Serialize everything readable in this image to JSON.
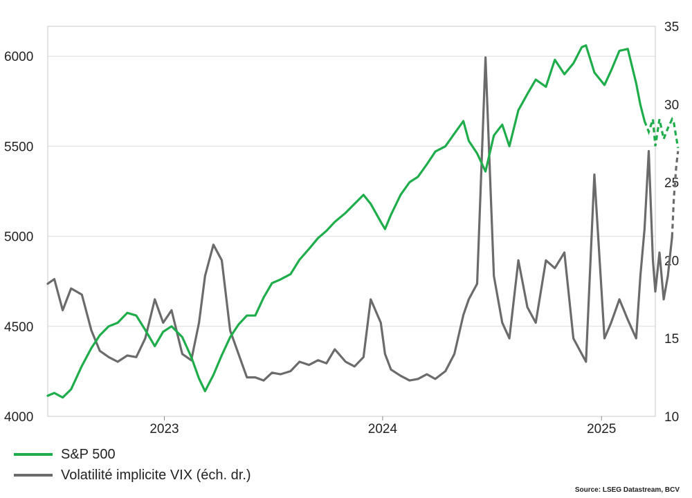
{
  "chart_data": {
    "type": "line",
    "title": "",
    "source": "Source: LSEG Datastream, BCV",
    "x_ticks": [
      "2023",
      "2024",
      "2025"
    ],
    "y_left": {
      "min": 4000,
      "max": 6166,
      "ticks": [
        4000,
        4500,
        5000,
        5500,
        6000
      ]
    },
    "y_right": {
      "min": 10,
      "max": 35,
      "ticks": [
        10,
        15,
        20,
        25,
        30,
        35
      ]
    },
    "grid": true,
    "legend_position": "bottom-left",
    "x_domain": [
      "2022-06-20",
      "2025-04-01"
    ],
    "series": [
      {
        "name": "S&P 500",
        "axis": "left",
        "color": "#1fad4b",
        "projection_from": "2025-03-14",
        "points": [
          [
            "2022-06-20",
            4115
          ],
          [
            "2022-07-01",
            4130
          ],
          [
            "2022-07-15",
            4105
          ],
          [
            "2022-07-29",
            4150
          ],
          [
            "2022-08-16",
            4280
          ],
          [
            "2022-09-01",
            4380
          ],
          [
            "2022-09-15",
            4450
          ],
          [
            "2022-09-30",
            4500
          ],
          [
            "2022-10-15",
            4520
          ],
          [
            "2022-10-31",
            4575
          ],
          [
            "2022-11-15",
            4560
          ],
          [
            "2022-11-30",
            4480
          ],
          [
            "2022-12-16",
            4390
          ],
          [
            "2022-12-30",
            4470
          ],
          [
            "2023-01-13",
            4500
          ],
          [
            "2023-01-31",
            4440
          ],
          [
            "2023-02-15",
            4330
          ],
          [
            "2023-02-28",
            4210
          ],
          [
            "2023-03-10",
            4140
          ],
          [
            "2023-03-24",
            4230
          ],
          [
            "2023-04-07",
            4340
          ],
          [
            "2023-04-21",
            4440
          ],
          [
            "2023-05-05",
            4510
          ],
          [
            "2023-05-19",
            4560
          ],
          [
            "2023-06-02",
            4560
          ],
          [
            "2023-06-16",
            4660
          ],
          [
            "2023-06-30",
            4740
          ],
          [
            "2023-07-14",
            4760
          ],
          [
            "2023-07-31",
            4790
          ],
          [
            "2023-08-15",
            4870
          ],
          [
            "2023-08-31",
            4930
          ],
          [
            "2023-09-15",
            4990
          ],
          [
            "2023-09-29",
            5030
          ],
          [
            "2023-10-13",
            5080
          ],
          [
            "2023-10-31",
            5130
          ],
          [
            "2023-11-15",
            5180
          ],
          [
            "2023-11-30",
            5230
          ],
          [
            "2023-12-12",
            5180
          ],
          [
            "2023-12-29",
            5080
          ],
          [
            "2024-01-05",
            5040
          ],
          [
            "2024-01-15",
            5120
          ],
          [
            "2024-01-31",
            5230
          ],
          [
            "2024-02-15",
            5300
          ],
          [
            "2024-02-29",
            5330
          ],
          [
            "2024-03-15",
            5400
          ],
          [
            "2024-03-29",
            5470
          ],
          [
            "2024-04-15",
            5500
          ],
          [
            "2024-04-30",
            5570
          ],
          [
            "2024-05-15",
            5640
          ],
          [
            "2024-05-24",
            5530
          ],
          [
            "2024-06-07",
            5460
          ],
          [
            "2024-06-21",
            5360
          ],
          [
            "2024-07-05",
            5560
          ],
          [
            "2024-07-19",
            5620
          ],
          [
            "2024-07-31",
            5500
          ],
          [
            "2024-08-15",
            5700
          ],
          [
            "2024-08-30",
            5790
          ],
          [
            "2024-09-13",
            5870
          ],
          [
            "2024-09-30",
            5830
          ],
          [
            "2024-10-15",
            5980
          ],
          [
            "2024-10-31",
            5900
          ],
          [
            "2024-11-15",
            5960
          ],
          [
            "2024-11-29",
            6050
          ],
          [
            "2024-12-06",
            6060
          ],
          [
            "2024-12-20",
            5910
          ],
          [
            "2025-01-06",
            5840
          ],
          [
            "2025-01-17",
            5920
          ],
          [
            "2025-01-31",
            6030
          ],
          [
            "2025-02-14",
            6040
          ],
          [
            "2025-02-28",
            5850
          ],
          [
            "2025-03-07",
            5730
          ],
          [
            "2025-03-14",
            5640
          ],
          [
            "2025-03-21",
            5580
          ],
          [
            "2025-03-28",
            5650
          ],
          [
            "2025-04-01",
            5500
          ],
          [
            "2025-04-08",
            5650
          ],
          [
            "2025-04-15",
            5540
          ],
          [
            "2025-04-22",
            5600
          ],
          [
            "2025-04-29",
            5650
          ],
          [
            "2025-05-02",
            5630
          ],
          [
            "2025-05-06",
            5550
          ],
          [
            "2025-05-09",
            5490
          ]
        ]
      },
      {
        "name": "Volatilité implicite VIX (éch. dr.)",
        "axis": "right",
        "color": "#6b6b6b",
        "projection_from": "2025-04-29",
        "points": [
          [
            "2022-06-20",
            18.5
          ],
          [
            "2022-07-01",
            18.8
          ],
          [
            "2022-07-15",
            16.8
          ],
          [
            "2022-07-29",
            18.2
          ],
          [
            "2022-08-16",
            17.8
          ],
          [
            "2022-09-01",
            15.5
          ],
          [
            "2022-09-15",
            14.2
          ],
          [
            "2022-09-30",
            13.8
          ],
          [
            "2022-10-15",
            13.5
          ],
          [
            "2022-10-31",
            13.9
          ],
          [
            "2022-11-15",
            13.8
          ],
          [
            "2022-11-30",
            15.0
          ],
          [
            "2022-12-16",
            17.5
          ],
          [
            "2022-12-30",
            16.0
          ],
          [
            "2023-01-13",
            16.8
          ],
          [
            "2023-01-31",
            14.0
          ],
          [
            "2023-02-15",
            13.6
          ],
          [
            "2023-02-28",
            16.0
          ],
          [
            "2023-03-10",
            19.0
          ],
          [
            "2023-03-24",
            21.0
          ],
          [
            "2023-04-07",
            20.0
          ],
          [
            "2023-04-21",
            15.5
          ],
          [
            "2023-05-05",
            14.0
          ],
          [
            "2023-05-19",
            12.5
          ],
          [
            "2023-06-02",
            12.5
          ],
          [
            "2023-06-16",
            12.3
          ],
          [
            "2023-06-30",
            12.8
          ],
          [
            "2023-07-14",
            12.7
          ],
          [
            "2023-07-31",
            12.9
          ],
          [
            "2023-08-15",
            13.5
          ],
          [
            "2023-08-31",
            13.3
          ],
          [
            "2023-09-15",
            13.6
          ],
          [
            "2023-09-29",
            13.4
          ],
          [
            "2023-10-13",
            14.3
          ],
          [
            "2023-10-31",
            13.5
          ],
          [
            "2023-11-15",
            13.2
          ],
          [
            "2023-11-30",
            13.8
          ],
          [
            "2023-12-12",
            17.5
          ],
          [
            "2023-12-29",
            16.0
          ],
          [
            "2024-01-05",
            14.0
          ],
          [
            "2024-01-15",
            13.0
          ],
          [
            "2024-01-31",
            12.6
          ],
          [
            "2024-02-15",
            12.3
          ],
          [
            "2024-02-29",
            12.4
          ],
          [
            "2024-03-15",
            12.7
          ],
          [
            "2024-03-29",
            12.4
          ],
          [
            "2024-04-15",
            12.9
          ],
          [
            "2024-04-30",
            14.0
          ],
          [
            "2024-05-15",
            16.5
          ],
          [
            "2024-05-24",
            17.5
          ],
          [
            "2024-06-07",
            18.5
          ],
          [
            "2024-06-21",
            33.0
          ],
          [
            "2024-07-05",
            19.0
          ],
          [
            "2024-07-19",
            16.0
          ],
          [
            "2024-07-31",
            15.0
          ],
          [
            "2024-08-15",
            20.0
          ],
          [
            "2024-08-30",
            17.0
          ],
          [
            "2024-09-13",
            16.0
          ],
          [
            "2024-09-30",
            20.0
          ],
          [
            "2024-10-15",
            19.5
          ],
          [
            "2024-10-31",
            20.5
          ],
          [
            "2024-11-15",
            15.0
          ],
          [
            "2024-11-29",
            14.0
          ],
          [
            "2024-12-06",
            13.5
          ],
          [
            "2024-12-20",
            25.5
          ],
          [
            "2025-01-06",
            15.0
          ],
          [
            "2025-01-17",
            16.0
          ],
          [
            "2025-01-31",
            17.5
          ],
          [
            "2025-02-14",
            16.2
          ],
          [
            "2025-02-28",
            15.0
          ],
          [
            "2025-03-07",
            19.0
          ],
          [
            "2025-03-14",
            22.0
          ],
          [
            "2025-03-21",
            27.0
          ],
          [
            "2025-03-28",
            20.0
          ],
          [
            "2025-04-01",
            18.0
          ],
          [
            "2025-04-08",
            20.5
          ],
          [
            "2025-04-15",
            17.5
          ],
          [
            "2025-04-22",
            19.0
          ],
          [
            "2025-04-29",
            21.5
          ],
          [
            "2025-05-02",
            24.0
          ],
          [
            "2025-05-06",
            26.0
          ],
          [
            "2025-05-09",
            27.0
          ]
        ]
      }
    ]
  }
}
